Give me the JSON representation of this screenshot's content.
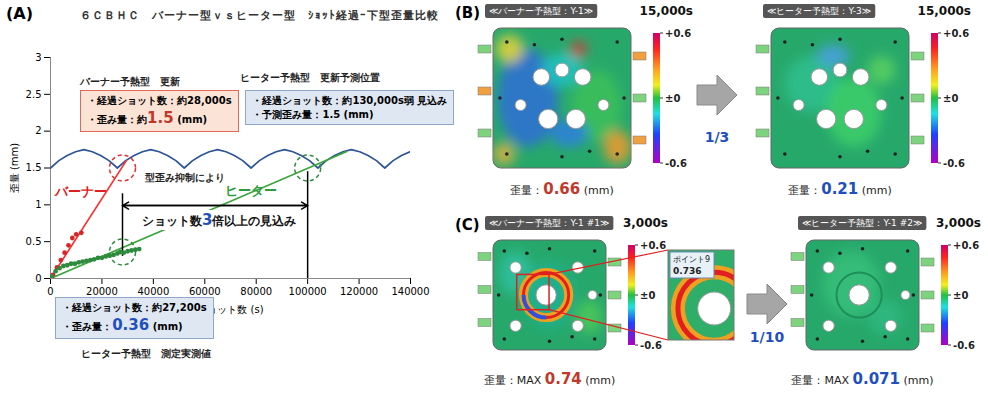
{
  "chart_data": {
    "type": "line",
    "panel_label": "(A)",
    "title": "６ＣＢＨＣ　バーナー型ｖｓヒーター型　ｼｮｯﾄ経過ｰ下型歪量比較",
    "x_label": "ショット数 (s)",
    "y_label": "歪量 (mm)",
    "xlim": [
      0,
      140000
    ],
    "xticks": [
      0,
      20000,
      40000,
      60000,
      80000,
      100000,
      120000,
      140000
    ],
    "ylim": [
      0,
      3
    ],
    "yticks": [
      0,
      0.5,
      1,
      1.5,
      2,
      2.5,
      3
    ],
    "grid": false,
    "series": [
      {
        "type": "line",
        "color": "#2f5597",
        "line_style": "solid",
        "x": [
          0,
          3250,
          6500,
          9750,
          13000,
          16250,
          19500,
          22750,
          26000,
          29250,
          32500,
          35750,
          39000,
          42250,
          45500,
          48750,
          52000,
          55250,
          58500,
          61750,
          65000,
          68250,
          71500,
          74750,
          78000,
          81250,
          84500,
          87750,
          91000,
          94250,
          97500,
          100750,
          104000,
          107250,
          110500,
          113750,
          117000,
          120250,
          123500,
          126750,
          130000,
          133250,
          136500,
          139750
        ],
        "values": [
          1.5,
          1.6,
          1.67,
          1.72,
          1.75,
          1.72,
          1.67,
          1.6,
          1.5,
          1.6,
          1.67,
          1.72,
          1.75,
          1.72,
          1.67,
          1.6,
          1.5,
          1.6,
          1.67,
          1.72,
          1.75,
          1.72,
          1.67,
          1.6,
          1.5,
          1.6,
          1.67,
          1.72,
          1.75,
          1.72,
          1.67,
          1.6,
          1.5,
          1.6,
          1.67,
          1.72,
          1.75,
          1.72,
          1.67,
          1.6,
          1.5,
          1.6,
          1.67,
          1.72
        ]
      },
      {
        "type": "line",
        "color": "#ff3030",
        "line_style": "solid",
        "x": [
          0,
          29500
        ],
        "values": [
          0,
          1.6
        ]
      },
      {
        "type": "line",
        "color": "#3aa53a",
        "line_style": "solid",
        "x": [
          0,
          115000
        ],
        "values": [
          0,
          1.72
        ]
      },
      {
        "type": "scatter",
        "color": "#d62728",
        "marker": "circle",
        "x": [
          1000,
          2500,
          4000,
          5500,
          7000,
          8500,
          10000,
          12000
        ],
        "values": [
          0.05,
          0.15,
          0.25,
          0.35,
          0.45,
          0.55,
          0.6,
          0.62
        ]
      },
      {
        "type": "scatter",
        "color": "#2e8b3e",
        "marker": "circle",
        "x": [
          500,
          2000,
          3500,
          5000,
          6500,
          8000,
          9500,
          11000,
          12500,
          14000,
          15500,
          17000,
          18500,
          20000,
          21500,
          23000,
          24500,
          26000,
          27200,
          28500,
          30000,
          31500,
          33000,
          34500
        ],
        "values": [
          0.03,
          0.1,
          0.14,
          0.17,
          0.18,
          0.2,
          0.2,
          0.22,
          0.23,
          0.24,
          0.25,
          0.26,
          0.28,
          0.28,
          0.3,
          0.31,
          0.32,
          0.34,
          0.36,
          0.35,
          0.37,
          0.38,
          0.39,
          0.4
        ]
      }
    ],
    "highlights": [
      {
        "x": 28000,
        "y": 1.5,
        "color": "#e03030"
      },
      {
        "x": 28000,
        "y": 0.36,
        "color": "#2e8b3e"
      },
      {
        "x": 100000,
        "y": 1.5,
        "color": "#2e8b3e"
      }
    ],
    "reference_lines": [
      {
        "x": 28000,
        "y1": 0.3,
        "y2": 1.15
      },
      {
        "x": 100000,
        "y1": 0,
        "y2": 1.45
      }
    ],
    "span": {
      "x1": 28000,
      "x2": 100000,
      "y": 0.99,
      "color": "#000000"
    },
    "annotations": [
      {
        "style": "plain",
        "x": 11700,
        "y": 2.74,
        "lines": [
          "バーナー予熱型　更新"
        ]
      },
      {
        "style": "red_box",
        "x": 11700,
        "y": 2.55,
        "lines": [
          "・経過ショット数：約28,000s",
          [
            {
              "text": "・歪み量：約"
            },
            {
              "text": "1.5",
              "color": "#c0392b"
            },
            {
              "text": " (mm)"
            }
          ]
        ]
      },
      {
        "style": "plain",
        "x": 74000,
        "y": 2.8,
        "lines": [
          "ヒーター予熱型　更新予測位置"
        ]
      },
      {
        "style": "blue_box",
        "x": 76000,
        "y": 2.55,
        "lines": [
          "・経過ショット数：約130,000s弱 見込み",
          "・予測歪み量：1.5 (mm)"
        ]
      },
      {
        "style": "label",
        "x": 2000,
        "y": 1.29,
        "color": "#e02020",
        "lines": [
          "バーナー"
        ]
      },
      {
        "style": "label",
        "x": 68000,
        "y": 1.3,
        "color": "#2e9b3e",
        "lines": [
          "ヒーター"
        ]
      },
      {
        "style": "plain",
        "x": 37000,
        "y": 1.44,
        "lines": [
          "型歪み抑制により"
        ]
      },
      {
        "style": "callout",
        "x": 35000,
        "y": 0.92,
        "lines": [
          [
            {
              "text": "ショット数"
            },
            {
              "text": "3",
              "color": "#1f4fbf"
            },
            {
              "text": "倍以上の見込み"
            }
          ]
        ]
      },
      {
        "style": "blue_box",
        "x": 2000,
        "y": -0.26,
        "lines": [
          "・経過ショット数：約27,200s",
          [
            {
              "text": "・歪み量："
            },
            {
              "text": "0.36",
              "color": "#1f4fbf"
            },
            {
              "text": " (mm)"
            }
          ]
        ]
      },
      {
        "style": "plain",
        "x": 12000,
        "y": -0.95,
        "lines": [
          "ヒーター予熱型　測定実測値"
        ]
      }
    ]
  },
  "panels": [
    {
      "label": "(B)",
      "ratio": "1/3",
      "maps": [
        {
          "title": "≪バーナー予熱型：Y-1≫",
          "shots": "15,000s",
          "caption": [
            {
              "text": "歪量："
            },
            {
              "text": "0.66",
              "color": "#c0392b"
            },
            {
              "text": " (mm)"
            }
          ]
        },
        {
          "title": "≪ヒーター予熱型：Y-3≫",
          "shots": "15,000s",
          "caption": [
            {
              "text": "歪量："
            },
            {
              "text": "0.21",
              "color": "#1f4fbf"
            },
            {
              "text": " (mm)"
            }
          ]
        }
      ]
    },
    {
      "label": "(C)",
      "ratio": "1/10",
      "maps": [
        {
          "title": "≪バーナー予熱型：Y-1 #1≫",
          "shots": "3,000s",
          "caption": [
            {
              "text": "歪量：MAX "
            },
            {
              "text": "0.74",
              "color": "#c0392b"
            },
            {
              "text": " (mm)"
            }
          ],
          "inset": {
            "title": "ポイント9",
            "value": "0.736"
          }
        },
        {
          "title": "≪ヒーター予熱型：Y-1 #2≫",
          "shots": "3,000s",
          "caption": [
            {
              "text": "歪量：MAX "
            },
            {
              "text": "0.071",
              "color": "#1f4fbf"
            },
            {
              "text": " (mm)"
            }
          ]
        }
      ]
    }
  ],
  "colorbar": {
    "range": [
      -0.6,
      0.6
    ],
    "ticks": [
      {
        "value": 0.6,
        "label": "+0.6"
      },
      {
        "value": 0,
        "label": "±0"
      },
      {
        "value": -0.6,
        "label": "-0.6"
      }
    ]
  }
}
